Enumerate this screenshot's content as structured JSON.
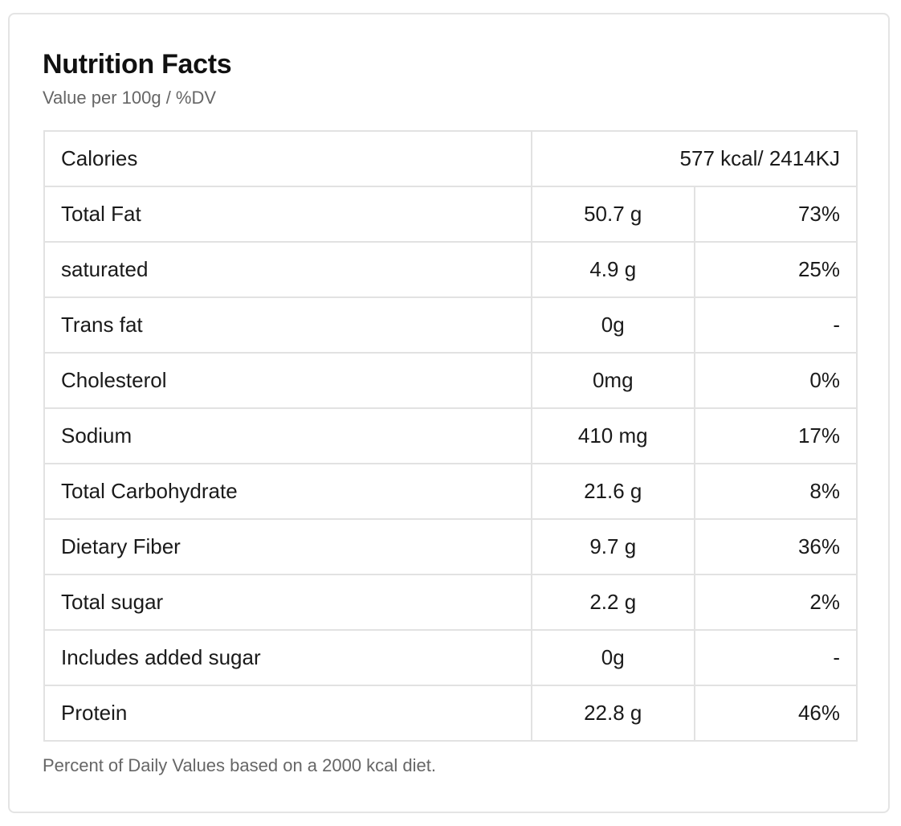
{
  "header": {
    "title": "Nutrition Facts",
    "subtitle": "Value per 100g / %DV"
  },
  "calories": {
    "label": "Calories",
    "value": "577 kcal/ 2414KJ"
  },
  "nutrients": [
    {
      "label": "Total Fat",
      "amount": "50.7 g",
      "dv": "73%"
    },
    {
      "label": "saturated",
      "amount": "4.9 g",
      "dv": "25%"
    },
    {
      "label": "Trans fat",
      "amount": "0g",
      "dv": "-"
    },
    {
      "label": "Cholesterol",
      "amount": "0mg",
      "dv": "0%"
    },
    {
      "label": "Sodium",
      "amount": "410 mg",
      "dv": "17%"
    },
    {
      "label": "Total Carbohydrate",
      "amount": "21.6 g",
      "dv": "8%"
    },
    {
      "label": "Dietary Fiber",
      "amount": "9.7 g",
      "dv": "36%"
    },
    {
      "label": "Total sugar",
      "amount": "2.2 g",
      "dv": "2%"
    },
    {
      "label": "Includes added sugar",
      "amount": "0g",
      "dv": "-"
    },
    {
      "label": "Protein",
      "amount": "22.8 g",
      "dv": "46%"
    }
  ],
  "footnote": "Percent of Daily Values based on a 2000 kcal diet.",
  "colors": {
    "border": "#e2e2e2",
    "text": "#1a1a1a",
    "muted": "#666666"
  }
}
